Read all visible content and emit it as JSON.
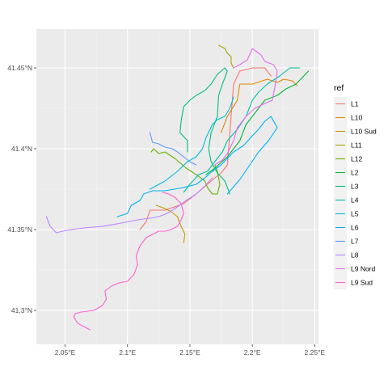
{
  "chart_data": {
    "type": "line",
    "title": "",
    "xlabel": "",
    "ylabel": "",
    "xlim": [
      2.027,
      2.253
    ],
    "ylim": [
      41.279,
      41.474
    ],
    "x_ticks": [
      2.05,
      2.1,
      2.15,
      2.2,
      2.25
    ],
    "x_tick_labels": [
      "2.05°E",
      "2.1°E",
      "2.15°E",
      "2.2°E",
      "2.25°E"
    ],
    "y_ticks": [
      41.3,
      41.35,
      41.4,
      41.45
    ],
    "y_tick_labels": [
      "41.3°N",
      "41.35°N",
      "41.4°N",
      "41.45°N"
    ],
    "grid": true,
    "legend_title": "ref",
    "legend_position": "right",
    "series": [
      {
        "name": "L1",
        "color": "#F8766D",
        "points": [
          [
            2.11,
            41.35
          ],
          [
            2.115,
            41.355
          ],
          [
            2.118,
            41.362
          ],
          [
            2.13,
            41.362
          ],
          [
            2.145,
            41.366
          ],
          [
            2.155,
            41.372
          ],
          [
            2.17,
            41.382
          ],
          [
            2.175,
            41.385
          ],
          [
            2.18,
            41.39
          ],
          [
            2.183,
            41.42
          ],
          [
            2.185,
            41.44
          ],
          [
            2.19,
            41.448
          ],
          [
            2.2,
            41.45
          ],
          [
            2.21,
            41.45
          ],
          [
            2.215,
            41.445
          ]
        ]
      },
      {
        "name": "L10",
        "color": "#E58700",
        "points": [
          [
            2.175,
            41.41
          ],
          [
            2.18,
            41.42
          ],
          [
            2.188,
            41.43
          ],
          [
            2.19,
            41.44
          ],
          [
            2.2,
            41.44
          ],
          [
            2.212,
            41.443
          ],
          [
            2.22,
            41.441
          ],
          [
            2.225,
            41.443
          ],
          [
            2.232,
            41.442
          ],
          [
            2.236,
            41.439
          ]
        ]
      },
      {
        "name": "L10 Sud",
        "color": "#C99800",
        "points": [
          [
            2.123,
            41.365
          ],
          [
            2.13,
            41.363
          ],
          [
            2.135,
            41.361
          ],
          [
            2.14,
            41.358
          ],
          [
            2.143,
            41.352
          ],
          [
            2.146,
            41.347
          ],
          [
            2.145,
            41.342
          ]
        ]
      },
      {
        "name": "L11",
        "color": "#A3A500",
        "points": [
          [
            2.173,
            41.464
          ],
          [
            2.178,
            41.462
          ],
          [
            2.18,
            41.459
          ],
          [
            2.183,
            41.457
          ],
          [
            2.183,
            41.453
          ],
          [
            2.185,
            41.45
          ]
        ]
      },
      {
        "name": "L12",
        "color": "#6BB100",
        "points": [
          [
            2.119,
            41.398
          ],
          [
            2.121,
            41.4
          ],
          [
            2.125,
            41.397
          ],
          [
            2.13,
            41.398
          ],
          [
            2.138,
            41.394
          ],
          [
            2.147,
            41.388
          ],
          [
            2.155,
            41.384
          ],
          [
            2.162,
            41.38
          ],
          [
            2.164,
            41.376
          ],
          [
            2.168,
            41.372
          ],
          [
            2.172,
            41.372
          ],
          [
            2.174,
            41.378
          ],
          [
            2.172,
            41.386
          ],
          [
            2.17,
            41.39
          ]
        ]
      },
      {
        "name": "L2",
        "color": "#00BA38",
        "points": [
          [
            2.163,
            41.384
          ],
          [
            2.17,
            41.388
          ],
          [
            2.18,
            41.395
          ],
          [
            2.19,
            41.405
          ],
          [
            2.195,
            41.415
          ],
          [
            2.2,
            41.42
          ],
          [
            2.21,
            41.43
          ],
          [
            2.22,
            41.433
          ],
          [
            2.227,
            41.437
          ],
          [
            2.235,
            41.44
          ],
          [
            2.245,
            41.448
          ]
        ]
      },
      {
        "name": "L3",
        "color": "#00BF7D",
        "points": [
          [
            2.148,
            41.398
          ],
          [
            2.148,
            41.405
          ],
          [
            2.142,
            41.41
          ],
          [
            2.143,
            41.417
          ],
          [
            2.145,
            41.426
          ],
          [
            2.15,
            41.43
          ],
          [
            2.155,
            41.433
          ],
          [
            2.162,
            41.436
          ],
          [
            2.167,
            41.44
          ],
          [
            2.172,
            41.446
          ],
          [
            2.178,
            41.45
          ],
          [
            2.18,
            41.448
          ],
          [
            2.176,
            41.44
          ],
          [
            2.173,
            41.433
          ],
          [
            2.172,
            41.42
          ],
          [
            2.167,
            41.41
          ],
          [
            2.165,
            41.4
          ],
          [
            2.167,
            41.392
          ],
          [
            2.172,
            41.385
          ],
          [
            2.178,
            41.38
          ],
          [
            2.182,
            41.372
          ]
        ]
      },
      {
        "name": "L4",
        "color": "#00C1A3",
        "points": [
          [
            2.145,
            41.373
          ],
          [
            2.15,
            41.378
          ],
          [
            2.157,
            41.384
          ],
          [
            2.164,
            41.386
          ],
          [
            2.17,
            41.392
          ],
          [
            2.176,
            41.398
          ],
          [
            2.18,
            41.405
          ],
          [
            2.188,
            41.412
          ],
          [
            2.195,
            41.42
          ],
          [
            2.2,
            41.43
          ],
          [
            2.205,
            41.435
          ],
          [
            2.212,
            41.44
          ],
          [
            2.222,
            41.445
          ],
          [
            2.23,
            41.45
          ],
          [
            2.238,
            41.45
          ]
        ]
      },
      {
        "name": "L5",
        "color": "#00BCD8",
        "points": [
          [
            2.118,
            41.375
          ],
          [
            2.13,
            41.38
          ],
          [
            2.14,
            41.386
          ],
          [
            2.148,
            41.392
          ],
          [
            2.155,
            41.395
          ],
          [
            2.16,
            41.4
          ],
          [
            2.163,
            41.407
          ],
          [
            2.168,
            41.415
          ],
          [
            2.172,
            41.418
          ],
          [
            2.178,
            41.42
          ],
          [
            2.182,
            41.425
          ],
          [
            2.185,
            41.432
          ]
        ]
      },
      {
        "name": "L6",
        "color": "#00B0F6",
        "points": [
          [
            2.092,
            41.358
          ],
          [
            2.1,
            41.36
          ],
          [
            2.103,
            41.365
          ],
          [
            2.11,
            41.368
          ],
          [
            2.113,
            41.372
          ],
          [
            2.12,
            41.374
          ],
          [
            2.13,
            41.374
          ],
          [
            2.145,
            41.376
          ],
          [
            2.155,
            41.378
          ],
          [
            2.162,
            41.382
          ],
          [
            2.168,
            41.386
          ],
          [
            2.175,
            41.39
          ],
          [
            2.185,
            41.398
          ],
          [
            2.193,
            41.402
          ],
          [
            2.2,
            41.408
          ],
          [
            2.205,
            41.412
          ],
          [
            2.21,
            41.417
          ],
          [
            2.215,
            41.42
          ],
          [
            2.22,
            41.413
          ],
          [
            2.213,
            41.405
          ],
          [
            2.205,
            41.398
          ],
          [
            2.198,
            41.39
          ],
          [
            2.19,
            41.381
          ],
          [
            2.18,
            41.372
          ]
        ]
      },
      {
        "name": "L7",
        "color": "#619CFF",
        "points": [
          [
            2.118,
            41.41
          ],
          [
            2.12,
            41.404
          ],
          [
            2.125,
            41.403
          ],
          [
            2.13,
            41.401
          ],
          [
            2.136,
            41.4
          ],
          [
            2.14,
            41.398
          ],
          [
            2.145,
            41.395
          ],
          [
            2.15,
            41.392
          ],
          [
            2.155,
            41.39
          ]
        ]
      },
      {
        "name": "L8",
        "color": "#B983FF",
        "points": [
          [
            2.035,
            41.358
          ],
          [
            2.038,
            41.352
          ],
          [
            2.043,
            41.348
          ],
          [
            2.048,
            41.349
          ],
          [
            2.055,
            41.35
          ],
          [
            2.065,
            41.351
          ],
          [
            2.08,
            41.352
          ],
          [
            2.095,
            41.354
          ],
          [
            2.108,
            41.356
          ],
          [
            2.118,
            41.357
          ],
          [
            2.125,
            41.358
          ],
          [
            2.132,
            41.36
          ],
          [
            2.14,
            41.364
          ],
          [
            2.147,
            41.368
          ],
          [
            2.155,
            41.372
          ],
          [
            2.162,
            41.377
          ],
          [
            2.168,
            41.382
          ]
        ]
      },
      {
        "name": "L9 Nord",
        "color": "#E76BF3",
        "points": [
          [
            2.17,
            41.39
          ],
          [
            2.176,
            41.393
          ],
          [
            2.18,
            41.397
          ],
          [
            2.185,
            41.405
          ],
          [
            2.188,
            41.413
          ],
          [
            2.195,
            41.42
          ],
          [
            2.202,
            41.425
          ],
          [
            2.21,
            41.428
          ],
          [
            2.216,
            41.43
          ],
          [
            2.218,
            41.438
          ],
          [
            2.22,
            41.448
          ],
          [
            2.217,
            41.452
          ],
          [
            2.21,
            41.454
          ],
          [
            2.207,
            41.458
          ],
          [
            2.2,
            41.462
          ],
          [
            2.196,
            41.455
          ],
          [
            2.19,
            41.452
          ],
          [
            2.185,
            41.45
          ]
        ]
      },
      {
        "name": "L9 Sud",
        "color": "#FD61D1",
        "points": [
          [
            2.07,
            41.288
          ],
          [
            2.065,
            41.29
          ],
          [
            2.06,
            41.292
          ],
          [
            2.057,
            41.296
          ],
          [
            2.058,
            41.298
          ],
          [
            2.063,
            41.299
          ],
          [
            2.073,
            41.3
          ],
          [
            2.08,
            41.303
          ],
          [
            2.083,
            41.307
          ],
          [
            2.082,
            41.312
          ],
          [
            2.087,
            41.315
          ],
          [
            2.093,
            41.317
          ],
          [
            2.1,
            41.318
          ],
          [
            2.105,
            41.322
          ],
          [
            2.108,
            41.328
          ],
          [
            2.107,
            41.334
          ],
          [
            2.11,
            41.34
          ],
          [
            2.115,
            41.345
          ],
          [
            2.12,
            41.347
          ],
          [
            2.125,
            41.349
          ],
          [
            2.13,
            41.349
          ],
          [
            2.135,
            41.35
          ],
          [
            2.14,
            41.352
          ],
          [
            2.143,
            41.356
          ],
          [
            2.145,
            41.36
          ],
          [
            2.143,
            41.366
          ],
          [
            2.138,
            41.37
          ],
          [
            2.133,
            41.372
          ],
          [
            2.128,
            41.373
          ]
        ]
      }
    ]
  }
}
